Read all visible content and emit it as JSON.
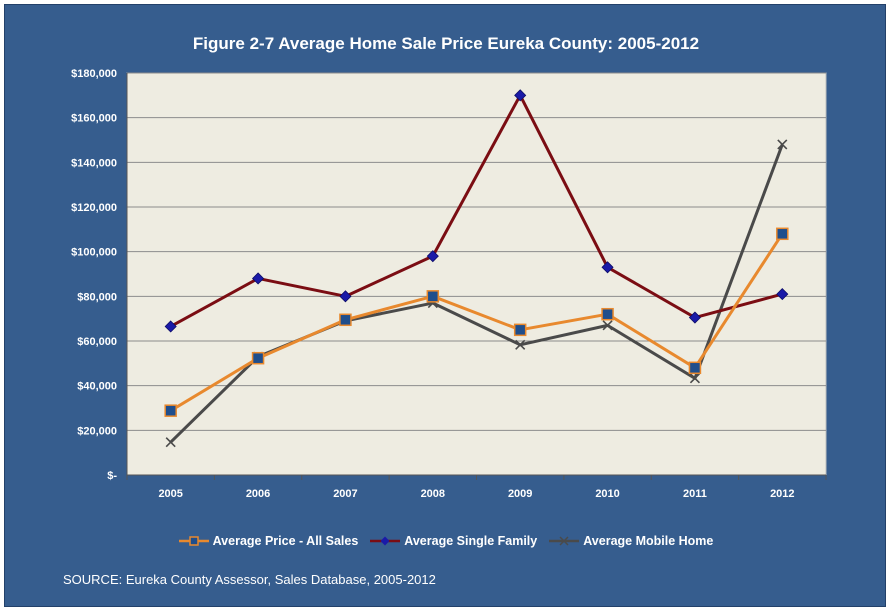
{
  "chart_data": {
    "type": "line",
    "title": "Figure 2-7 Average Home Sale Price Eureka County: 2005-2012",
    "xlabel": "",
    "ylabel": "",
    "categories": [
      "2005",
      "2006",
      "2007",
      "2008",
      "2009",
      "2010",
      "2011",
      "2012"
    ],
    "ylim": [
      0,
      180000
    ],
    "yticks": [
      0,
      20000,
      40000,
      60000,
      80000,
      100000,
      120000,
      140000,
      160000,
      180000
    ],
    "ytick_labels": [
      "$-",
      "$20,000",
      "$40,000",
      "$60,000",
      "$80,000",
      "$100,000",
      "$120,000",
      "$140,000",
      "$160,000",
      "$180,000"
    ],
    "grid": true,
    "legend_position": "bottom",
    "series": [
      {
        "name": "Average Price - All Sales",
        "color": "#e8892e",
        "marker": "square",
        "marker_color": "#1f4e8c",
        "values": [
          28800,
          52300,
          69500,
          80000,
          65000,
          72000,
          48000,
          108000
        ]
      },
      {
        "name": "Average Single Family",
        "color": "#7b0d13",
        "marker": "diamond",
        "marker_color": "#1a1aa8",
        "values": [
          66500,
          88000,
          80000,
          98000,
          170000,
          93000,
          70500,
          81000
        ]
      },
      {
        "name": "Average Mobile Home",
        "color": "#4a4a4a",
        "marker": "x",
        "marker_color": "#4a4a4a",
        "values": [
          14700,
          53000,
          69000,
          77000,
          58300,
          67000,
          43300,
          148000
        ]
      }
    ]
  },
  "source_note": "SOURCE:  Eureka County Assessor, Sales Database, 2005-2012",
  "colors": {
    "background": "#365d8e",
    "plot_area": "#eeece1",
    "gridline": "#8c8c8c",
    "text": "#ffffff"
  }
}
